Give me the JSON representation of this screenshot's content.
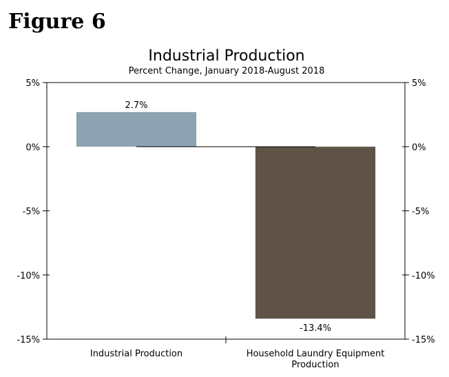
{
  "figure_label": "Figure 6",
  "chart_data": {
    "type": "bar",
    "title": "Industrial Production",
    "subtitle": "Percent Change, January 2018-August 2018",
    "categories": [
      "Industrial Production",
      "Household Laundry Equipment Production"
    ],
    "category_lines": [
      [
        "Industrial Production"
      ],
      [
        "Household Laundry Equipment",
        "Production"
      ]
    ],
    "values": [
      2.7,
      -13.4
    ],
    "data_labels": [
      "2.7%",
      "-13.4%"
    ],
    "bar_colors": [
      "#8ea3b1",
      "#5e5346"
    ],
    "ylim": [
      -15,
      5
    ],
    "yticks": [
      5,
      0,
      -5,
      -10,
      -15
    ],
    "ytick_labels": [
      "5%",
      "0%",
      "-5%",
      "-10%",
      "-15%"
    ],
    "xlabel": "",
    "ylabel": "",
    "grid": false,
    "legend": "none"
  }
}
